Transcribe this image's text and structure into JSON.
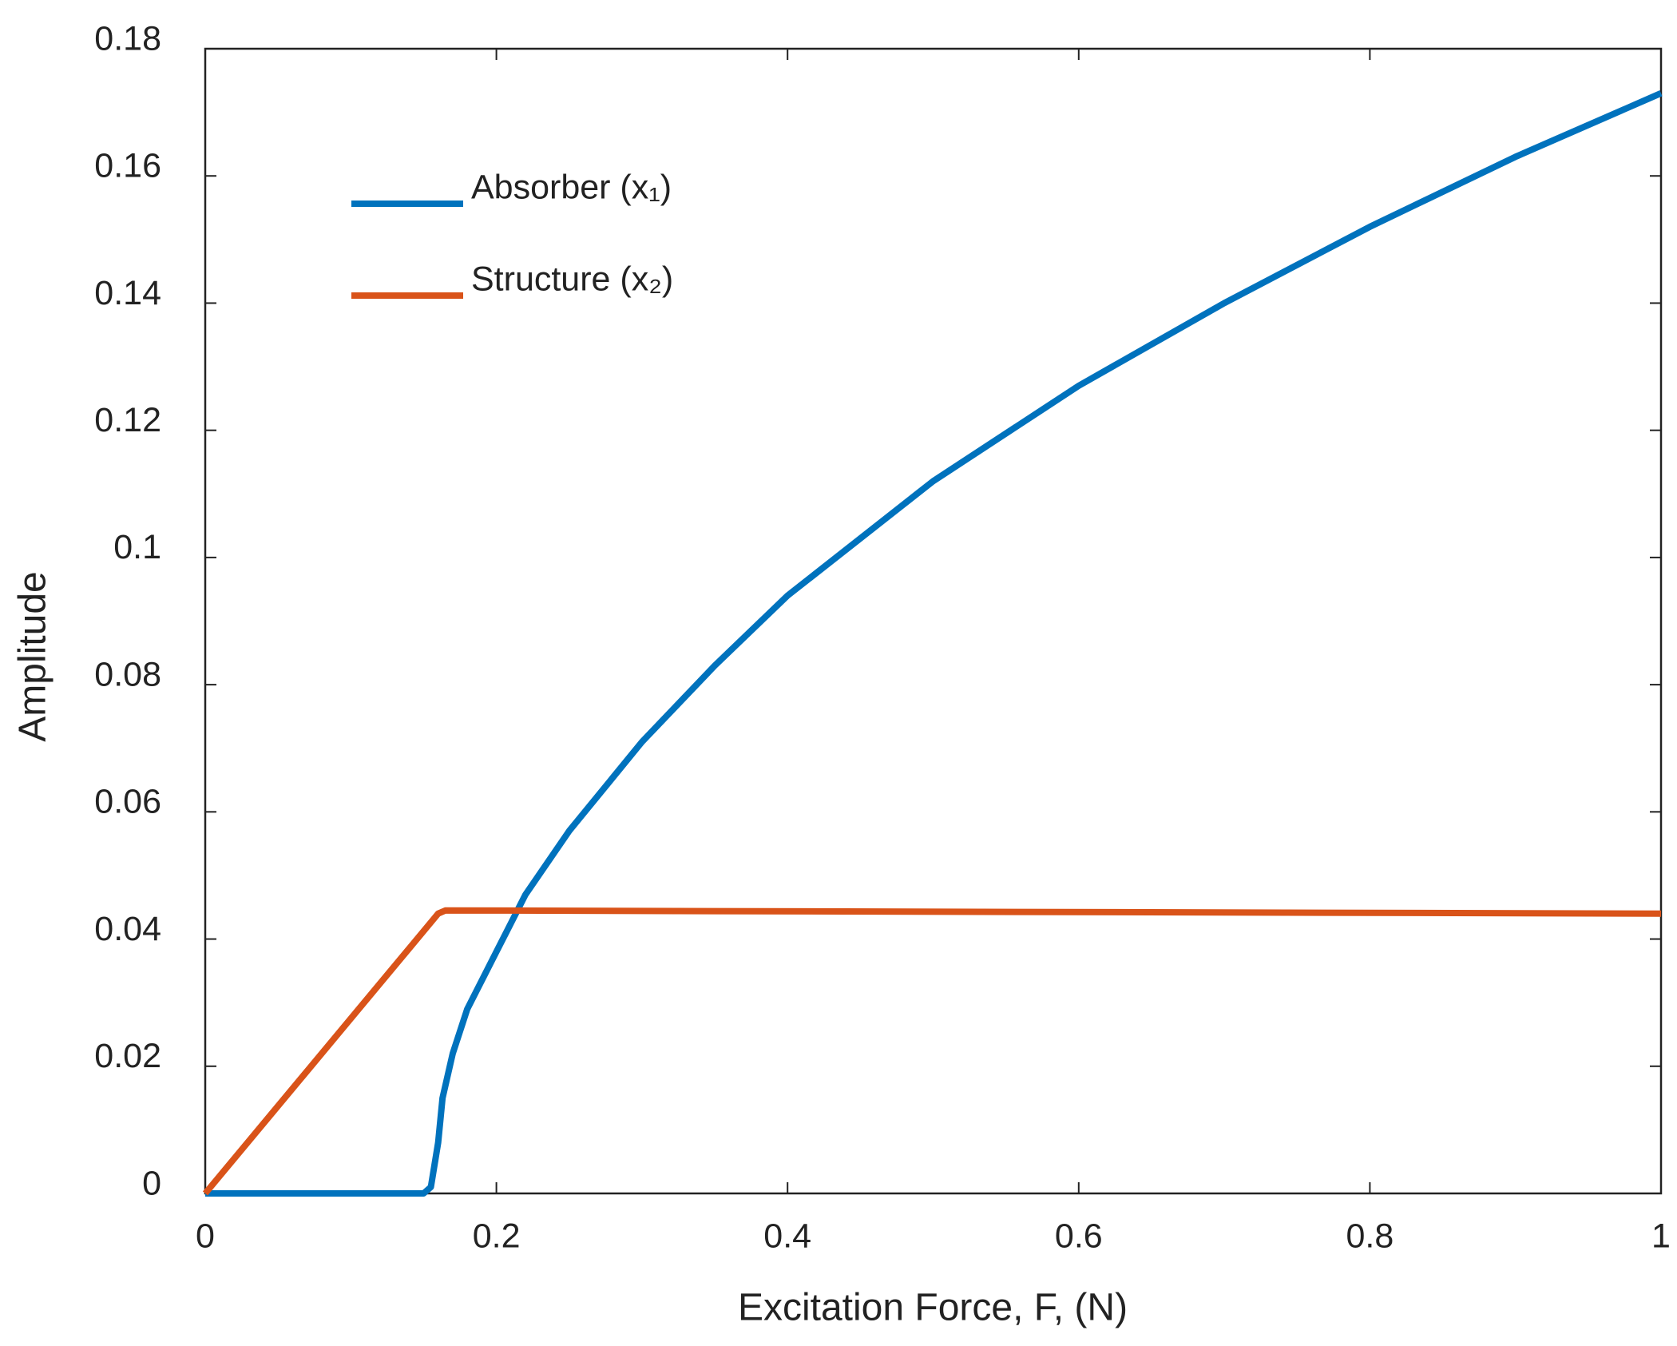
{
  "chart_data": {
    "type": "line",
    "xlabel": "Excitation Force, F, (N)",
    "ylabel": "Amplitude",
    "xlim": [
      0,
      1
    ],
    "ylim": [
      0,
      0.18
    ],
    "xticks": [
      0,
      0.2,
      0.4,
      0.6,
      0.8,
      1
    ],
    "yticks": [
      0,
      0.02,
      0.04,
      0.06,
      0.08,
      0.1,
      0.12,
      0.14,
      0.16,
      0.18
    ],
    "grid": false,
    "legend": "upper left",
    "series": [
      {
        "name": "Absorber (x₁)",
        "color": "#0072bd",
        "x": [
          0,
          0.15,
          0.155,
          0.16,
          0.163,
          0.17,
          0.18,
          0.2,
          0.22,
          0.25,
          0.3,
          0.35,
          0.4,
          0.5,
          0.6,
          0.7,
          0.8,
          0.9,
          1
        ],
        "values": [
          0,
          0,
          0.001,
          0.008,
          0.015,
          0.022,
          0.029,
          0.038,
          0.047,
          0.057,
          0.071,
          0.083,
          0.094,
          0.112,
          0.127,
          0.14,
          0.152,
          0.163,
          0.173
        ]
      },
      {
        "name": "Structure (x₂)",
        "color": "#d95319",
        "x": [
          0,
          0.16,
          0.165,
          1
        ],
        "values": [
          0,
          0.044,
          0.0445,
          0.044
        ]
      }
    ]
  }
}
